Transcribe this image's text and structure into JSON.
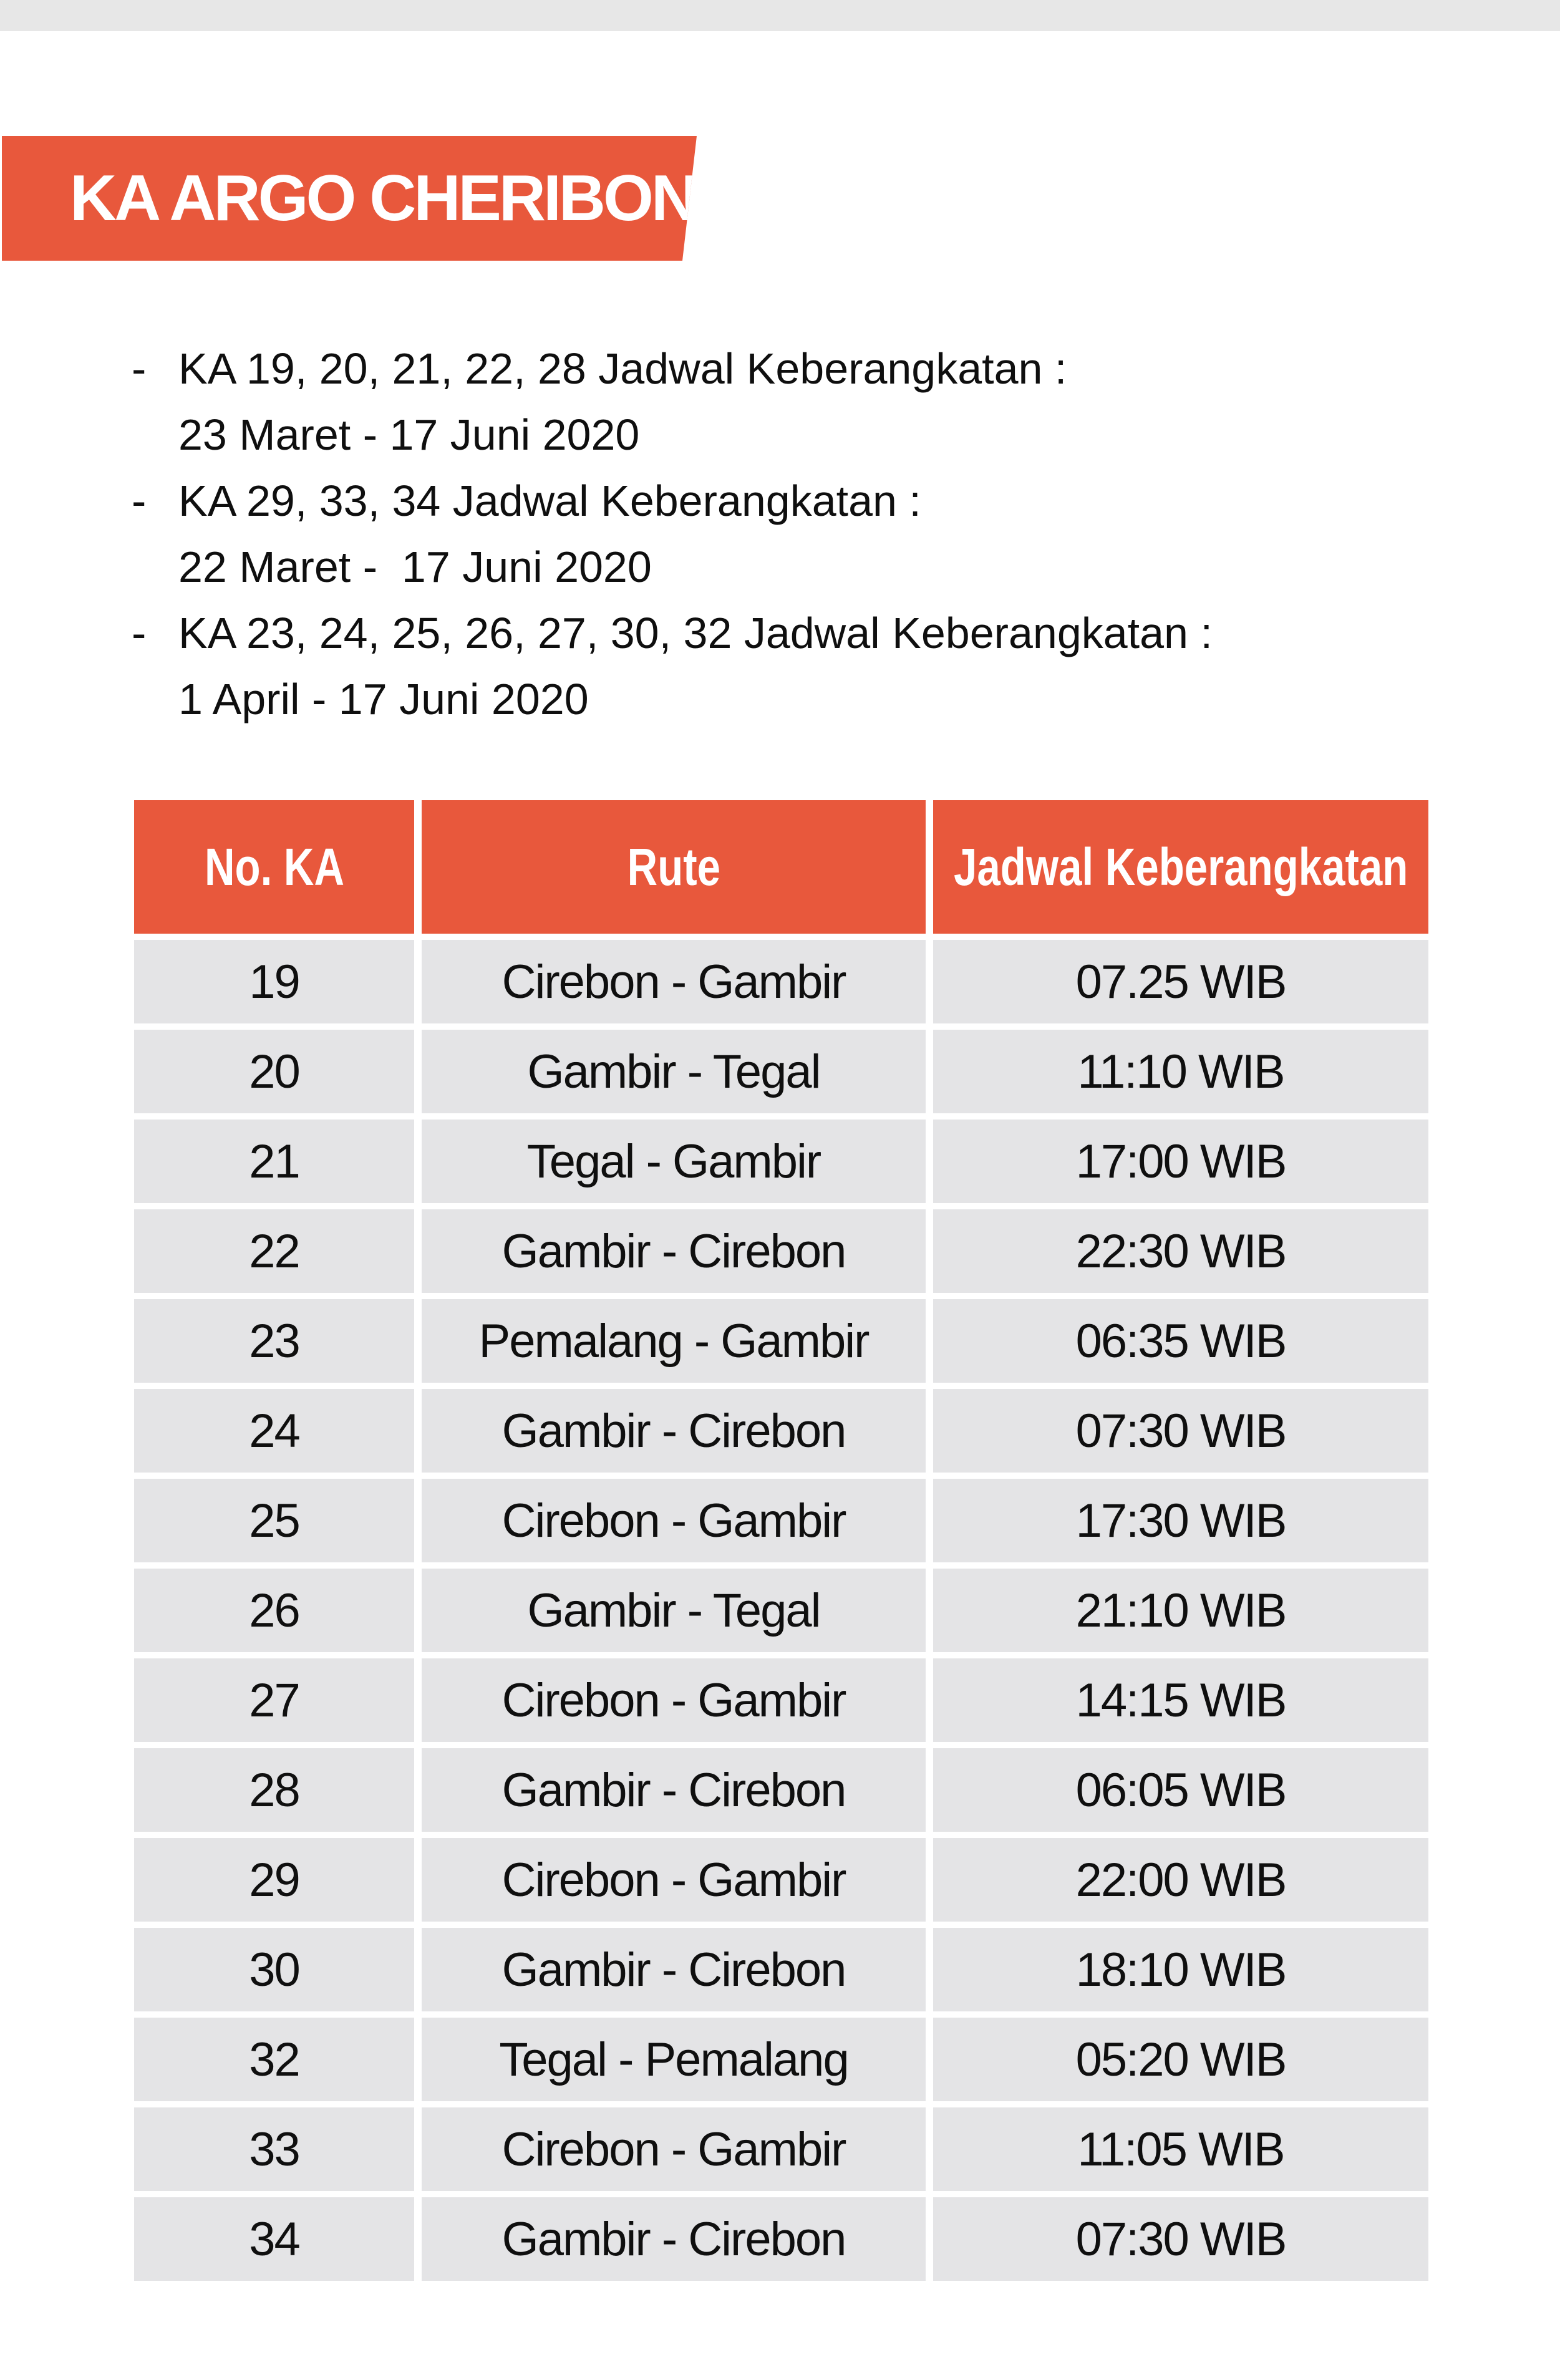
{
  "page": {
    "banner_title": "KA ARGO CHERIBON"
  },
  "colors": {
    "accent_orange": "#E8583C",
    "row_gray": "#E4E4E6",
    "top_strip_gray": "#E7E7E7",
    "banner_text": "#FFFFFF",
    "body_text": "#0F0F0F"
  },
  "notes": {
    "bullet_char": "-",
    "items": [
      {
        "line1": "KA 19, 20, 21, 22, 28 Jadwal Keberangkatan :",
        "line2": "23 Maret - 17 Juni 2020"
      },
      {
        "line1": "KA 29, 33, 34 Jadwal Keberangkatan :",
        "line2": "22 Maret -  17 Juni 2020"
      },
      {
        "line1": "KA 23, 24, 25, 26, 27, 30, 32 Jadwal Keberangkatan :",
        "line2": "1 April - 17 Juni 2020"
      }
    ]
  },
  "table": {
    "headers": [
      "No. KA",
      "Rute",
      "Jadwal Keberangkatan"
    ],
    "rows": [
      {
        "no": "19",
        "rute": "Cirebon - Gambir",
        "jadwal": "07.25 WIB"
      },
      {
        "no": "20",
        "rute": "Gambir - Tegal",
        "jadwal": "11:10 WIB"
      },
      {
        "no": "21",
        "rute": "Tegal - Gambir",
        "jadwal": "17:00 WIB"
      },
      {
        "no": "22",
        "rute": "Gambir - Cirebon",
        "jadwal": "22:30 WIB"
      },
      {
        "no": "23",
        "rute": "Pemalang - Gambir",
        "jadwal": "06:35 WIB"
      },
      {
        "no": "24",
        "rute": "Gambir - Cirebon",
        "jadwal": "07:30 WIB"
      },
      {
        "no": "25",
        "rute": "Cirebon - Gambir",
        "jadwal": "17:30 WIB"
      },
      {
        "no": "26",
        "rute": "Gambir - Tegal",
        "jadwal": "21:10 WIB"
      },
      {
        "no": "27",
        "rute": "Cirebon - Gambir",
        "jadwal": "14:15 WIB"
      },
      {
        "no": "28",
        "rute": "Gambir - Cirebon",
        "jadwal": "06:05 WIB"
      },
      {
        "no": "29",
        "rute": "Cirebon - Gambir",
        "jadwal": "22:00 WIB"
      },
      {
        "no": "30",
        "rute": "Gambir - Cirebon",
        "jadwal": "18:10 WIB"
      },
      {
        "no": "32",
        "rute": "Tegal - Pemalang",
        "jadwal": "05:20 WIB"
      },
      {
        "no": "33",
        "rute": "Cirebon - Gambir",
        "jadwal": "11:05 WIB"
      },
      {
        "no": "34",
        "rute": "Gambir - Cirebon",
        "jadwal": "07:30 WIB"
      }
    ]
  }
}
